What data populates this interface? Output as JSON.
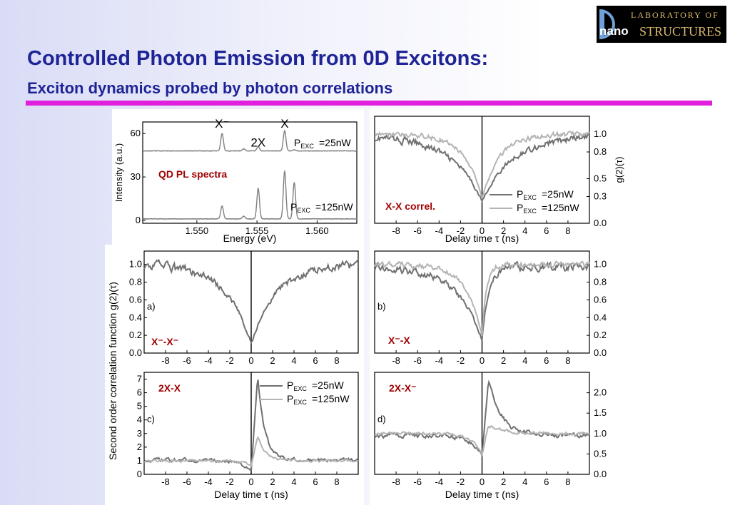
{
  "title": "Controlled Photon Emission from 0D Excitons:",
  "subtitle": "Exciton dynamics probed by photon correlations",
  "logo": {
    "line1": "LABORATORY OF",
    "line2a": "nano",
    "line2b": "STRUCTURES"
  },
  "colors": {
    "title": "#1e2496",
    "rule": "#e020dc",
    "annotation": "#a00000",
    "trace_dark": "#707070",
    "trace_light": "#b4b4b4"
  },
  "shared_ylabel": "Second order correlation function g(2)(τ)",
  "chart_data": [
    {
      "id": "pl",
      "type": "line",
      "annotation": "QD PL spectra",
      "xlabel": "Energy (eV)",
      "ylabel": "Intensity (a.u.)",
      "xlim": [
        1.5455,
        1.5633
      ],
      "ylim": [
        -2,
        68
      ],
      "xticks": [
        1.55,
        1.555,
        1.56
      ],
      "xtick_labels": [
        "1.550",
        "1.555",
        "1.560"
      ],
      "yticks": [
        0,
        30,
        60
      ],
      "peak_labels": [
        {
          "text": "X⁻",
          "x": 1.5521,
          "y": 64
        },
        {
          "text": "2X",
          "x": 1.5551,
          "y": 51
        },
        {
          "text": "X",
          "x": 1.5573,
          "y": 64
        }
      ],
      "series": [
        {
          "name": "PEXC=25nW",
          "baseline": 48,
          "peaks": [
            [
              1.5521,
              12
            ],
            [
              1.5539,
              1.5
            ],
            [
              1.5551,
              3
            ],
            [
              1.5573,
              14
            ],
            [
              1.5581,
              0.8
            ]
          ]
        },
        {
          "name": "PEXC=125nW",
          "baseline": 1,
          "peaks": [
            [
              1.5521,
              9
            ],
            [
              1.5539,
              2
            ],
            [
              1.5551,
              21
            ],
            [
              1.5573,
              33
            ],
            [
              1.5581,
              25
            ]
          ]
        }
      ]
    },
    {
      "id": "xx",
      "type": "line",
      "annotation": "X-X correl.",
      "xlabel": "Delay time τ (ns)",
      "ylabel": "g(2)(τ)",
      "xlim": [
        -10,
        10
      ],
      "ylim": [
        0,
        1.2
      ],
      "xticks": [
        -8,
        -6,
        -4,
        -2,
        0,
        2,
        4,
        6,
        8
      ],
      "yticks": [
        0.0,
        0.3,
        0.5,
        0.8,
        1.0
      ],
      "ytick_labels": [
        "0.0",
        "0.3",
        "0.5",
        "0.8",
        "1.0"
      ],
      "series": [
        {
          "name": "PEXC=25nW",
          "kind": "dip",
          "base": 0.98,
          "min": 0.25,
          "tau": 2.8
        },
        {
          "name": "PEXC=125nW",
          "kind": "dip",
          "base": 1.0,
          "min": 0.28,
          "tau": 1.6
        }
      ]
    },
    {
      "id": "a",
      "type": "line",
      "panel_label": "a)",
      "annotation": "X⁻-X⁻",
      "xlabel": "",
      "xlim": [
        -10,
        10
      ],
      "ylim": [
        0,
        1.15
      ],
      "xticks": [
        -8,
        -6,
        -4,
        -2,
        0,
        2,
        4,
        6,
        8
      ],
      "yticks": [
        0.0,
        0.2,
        0.4,
        0.6,
        0.8,
        1.0
      ],
      "ytick_labels": [
        "0.0",
        "0.2",
        "0.4",
        "0.6",
        "0.8",
        "1.0"
      ],
      "series": [
        {
          "name": "",
          "kind": "dip",
          "base": 1.0,
          "min": 0.1,
          "tau": 2.3
        }
      ]
    },
    {
      "id": "b",
      "type": "line",
      "panel_label": "b)",
      "annotation": "X⁻-X",
      "xlabel": "",
      "xlim": [
        -10,
        10
      ],
      "ylim": [
        0,
        1.15
      ],
      "xticks": [
        -8,
        -6,
        -4,
        -2,
        0,
        2,
        4,
        6,
        8
      ],
      "yticks": [
        0.0,
        0.2,
        0.4,
        0.6,
        0.8,
        1.0
      ],
      "ytick_labels": [
        "0.0",
        "0.2",
        "0.4",
        "0.6",
        "0.8",
        "1.0"
      ],
      "series": [
        {
          "name": "PEXC=25nW",
          "kind": "asym",
          "base": 0.97,
          "min": 0.15,
          "tauL": 2.3,
          "tauR": 0.6
        },
        {
          "name": "PEXC=125nW",
          "kind": "asym",
          "base": 1.0,
          "min": 0.2,
          "tauL": 1.5,
          "tauR": 0.4
        }
      ]
    },
    {
      "id": "c",
      "type": "line",
      "panel_label": "c)",
      "annotation": "2X-X",
      "xlabel": "Delay time τ (ns)",
      "xlim": [
        -10,
        10
      ],
      "ylim": [
        0,
        7.5
      ],
      "xticks": [
        -8,
        -6,
        -4,
        -2,
        0,
        2,
        4,
        6,
        8
      ],
      "yticks": [
        0,
        1,
        2,
        3,
        4,
        5,
        6,
        7
      ],
      "series": [
        {
          "name": "PEXC=25nW",
          "kind": "bunch",
          "base": 1.05,
          "dip": 0.25,
          "peak": 7.2,
          "tauL": 1.0,
          "tauR": 0.65
        },
        {
          "name": "PEXC=125nW",
          "kind": "bunch",
          "base": 1.0,
          "dip": 0.6,
          "peak": 2.8,
          "tauL": 0.6,
          "tauR": 0.7
        }
      ]
    },
    {
      "id": "d",
      "type": "line",
      "panel_label": "d)",
      "annotation": "2X-X⁻",
      "xlabel": "Delay time τ (ns)",
      "xlim": [
        -10,
        10
      ],
      "ylim": [
        0,
        2.5
      ],
      "xticks": [
        -8,
        -6,
        -4,
        -2,
        0,
        2,
        4,
        6,
        8
      ],
      "yticks": [
        0.0,
        0.5,
        1.0,
        1.5,
        2.0
      ],
      "ytick_labels": [
        "0.0",
        "0.5",
        "1.0",
        "1.5",
        "2.0"
      ],
      "series": [
        {
          "name": "PEXC=25nW",
          "kind": "bunch",
          "base": 0.95,
          "dip": 0.45,
          "peak": 2.3,
          "tauL": 1.0,
          "tauR": 1.2
        },
        {
          "name": "PEXC=125nW",
          "kind": "bunch",
          "base": 1.0,
          "dip": 0.5,
          "peak": 1.2,
          "tauL": 1.0,
          "tauR": 1.5
        }
      ]
    }
  ]
}
